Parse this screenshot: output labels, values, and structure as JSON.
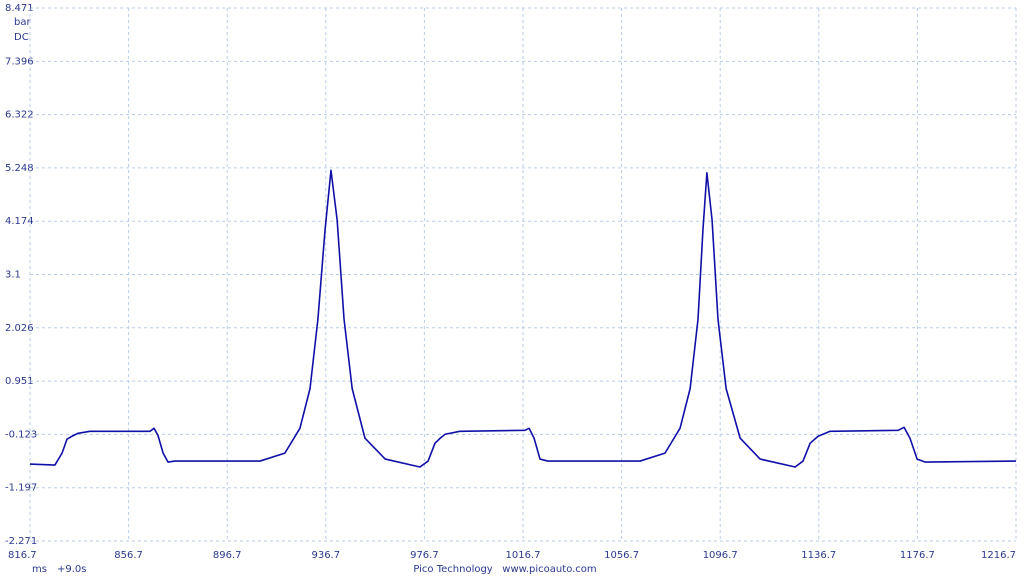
{
  "chart_data": {
    "type": "line",
    "y_unit": "bar",
    "coupling": "DC",
    "x_unit": "ms",
    "time_offset": "+9.0s",
    "footer": "Pico Technology   www.picoauto.com",
    "color": "#1010a8",
    "grid": true,
    "xlim": [
      816.7,
      1216.7
    ],
    "xticks": [
      816.7,
      856.7,
      896.7,
      936.7,
      976.7,
      1016.7,
      1056.7,
      1096.7,
      1136.7,
      1176.7,
      1216.7
    ],
    "ylim": [
      -2.271,
      8.471
    ],
    "yticks": [
      8.471,
      7.396,
      6.322,
      5.248,
      4.174,
      3.1,
      2.026,
      0.951,
      -0.123,
      -1.197,
      -2.271
    ],
    "x": [
      816.7,
      826.8,
      829.7,
      831.7,
      833.7,
      836.2,
      841.0,
      865.4,
      867.0,
      868.6,
      870.7,
      872.7,
      875.5,
      910.0,
      920.1,
      926.2,
      930.3,
      933.5,
      936.4,
      938.8,
      941.3,
      944.1,
      947.4,
      952.6,
      960.8,
      974.9,
      978.2,
      981.0,
      983.1,
      985.1,
      991.1,
      1017.5,
      1019.2,
      1021.2,
      1023.6,
      1026.8,
      1064.2,
      1074.3,
      1080.4,
      1084.5,
      1087.7,
      1089.7,
      1091.3,
      1093.4,
      1095.8,
      1099.1,
      1104.8,
      1112.9,
      1127.1,
      1130.3,
      1133.2,
      1136.4,
      1141.3,
      1168.9,
      1171.3,
      1173.7,
      1176.6,
      1179.8,
      1216.7
    ],
    "values": [
      -0.72,
      -0.74,
      -0.5,
      -0.22,
      -0.16,
      -0.1,
      -0.06,
      -0.06,
      0.0,
      -0.14,
      -0.5,
      -0.68,
      -0.66,
      -0.66,
      -0.5,
      0.0,
      0.8,
      2.2,
      4.0,
      5.2,
      4.2,
      2.2,
      0.8,
      -0.2,
      -0.62,
      -0.78,
      -0.66,
      -0.3,
      -0.2,
      -0.12,
      -0.06,
      -0.04,
      0.0,
      -0.2,
      -0.62,
      -0.66,
      -0.66,
      -0.5,
      0.0,
      0.8,
      2.2,
      4.0,
      5.15,
      4.2,
      2.2,
      0.8,
      -0.2,
      -0.62,
      -0.78,
      -0.66,
      -0.3,
      -0.16,
      -0.06,
      -0.04,
      0.02,
      -0.2,
      -0.62,
      -0.68,
      -0.66
    ]
  }
}
